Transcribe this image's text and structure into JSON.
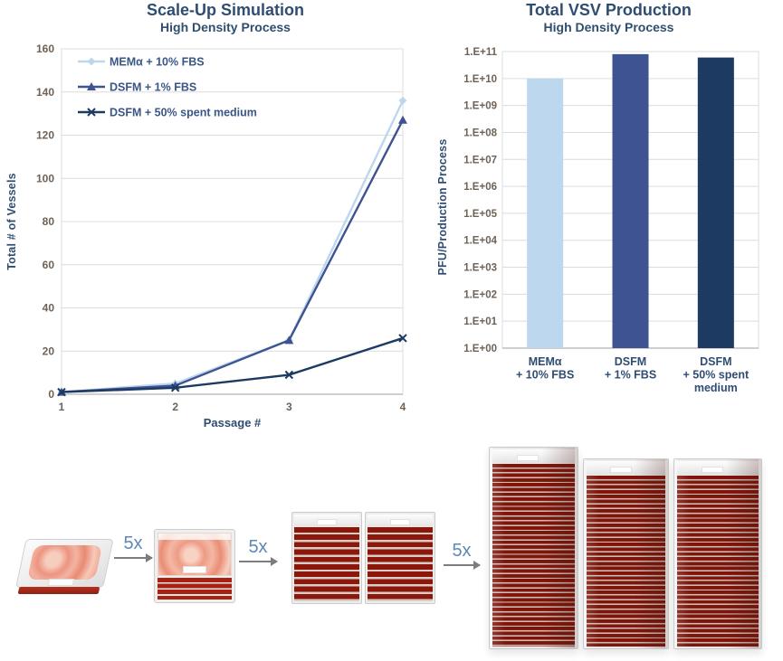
{
  "colors": {
    "title_navy": "#2F4D71",
    "light_blue": "#BDD7EE",
    "medium_blue": "#3E5391",
    "dark_navy": "#1C3A62",
    "gridline": "#DCDCDC",
    "axis_line": "#BFBFBF",
    "tick_text": "#6E6256",
    "legend_text": "#3A5687",
    "arrow_label_blue": "#5E88B5",
    "vessel_red": "#8E170C"
  },
  "chart_data": [
    {
      "type": "line",
      "title": "Scale-Up Simulation",
      "subtitle": "High Density Process",
      "xlabel": "Passage #",
      "ylabel": "Total # of Vessels",
      "x": [
        1,
        2,
        3,
        4
      ],
      "xticks": [
        1,
        2,
        3,
        4
      ],
      "ylim": [
        0,
        160
      ],
      "yticks": [
        0,
        20,
        40,
        60,
        80,
        100,
        120,
        140,
        160
      ],
      "grid": true,
      "legend_position": "top-left-inside",
      "series": [
        {
          "name": "MEMα + 10% FBS",
          "marker": "diamond",
          "color": "#BDD7EE",
          "values": [
            1,
            5,
            25,
            136
          ]
        },
        {
          "name": "DSFM + 1% FBS",
          "marker": "triangle",
          "color": "#3E5391",
          "values": [
            1,
            4,
            25,
            127
          ]
        },
        {
          "name": "DSFM + 50% spent medium",
          "marker": "x",
          "color": "#1C3A62",
          "values": [
            1,
            3,
            9,
            26
          ]
        }
      ]
    },
    {
      "type": "bar",
      "title": "Total VSV Production",
      "subtitle": "High Density Process",
      "ylabel": "PFU/Production Process",
      "yscale": "log",
      "ylim_exponents": [
        0,
        11
      ],
      "ytick_labels": [
        "1.E+00",
        "1.E+01",
        "1.E+02",
        "1.E+03",
        "1.E+04",
        "1.E+05",
        "1.E+06",
        "1.E+07",
        "1.E+08",
        "1.E+09",
        "1.E+10",
        "1.E+11"
      ],
      "categories": [
        [
          "MEMα",
          "+ 10% FBS"
        ],
        [
          "DSFM",
          "+ 1% FBS"
        ],
        [
          "DSFM",
          "+ 50% spent",
          "medium"
        ]
      ],
      "values": [
        10000000000.0,
        80000000000.0,
        60000000000.0
      ],
      "bar_colors": [
        "#BDD7EE",
        "#3E5391",
        "#1C3A62"
      ],
      "grid": true
    }
  ],
  "process_flow": {
    "arrows": [
      "5x",
      "5x",
      "5x"
    ],
    "stages": [
      {
        "name": "single-layer-vessel",
        "layers": 1,
        "units": 1
      },
      {
        "name": "five-layer-stack",
        "layers": 5,
        "units": 1
      },
      {
        "name": "ten-layer-stacks",
        "layers": 10,
        "units": 2
      },
      {
        "name": "forty-layer-stacks",
        "layers": 40,
        "units": 3
      }
    ]
  }
}
